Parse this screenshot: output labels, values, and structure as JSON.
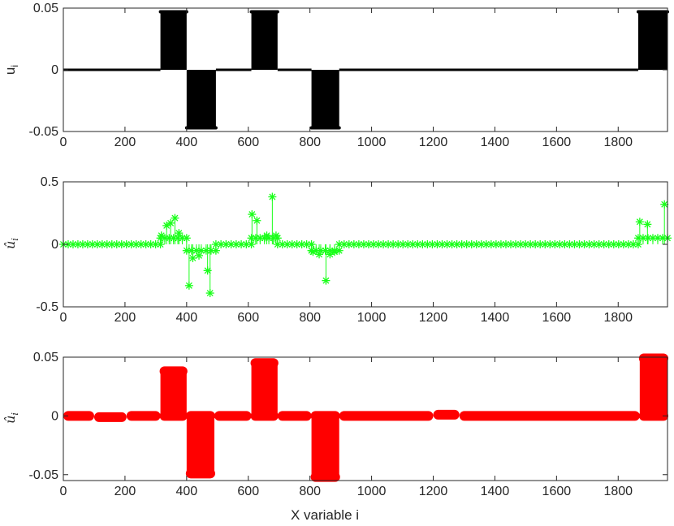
{
  "chart_data": [
    {
      "type": "line",
      "panel": "top",
      "ylabel": "u_i",
      "xlabel": "",
      "xlim": [
        0,
        1960
      ],
      "ylim": [
        -0.05,
        0.05
      ],
      "xticks": [
        "0",
        "200",
        "400",
        "600",
        "800",
        "1000",
        "1200",
        "1400",
        "1600",
        "1800"
      ],
      "yticks": [
        "-0.05",
        "0",
        "0.05"
      ],
      "style": "dense-stem",
      "color": "#000000",
      "series": [
        {
          "segments": [
            {
              "x": [
                0,
                315
              ],
              "y": 0
            },
            {
              "x": [
                315,
                400
              ],
              "y": 0.047
            },
            {
              "x": [
                400,
                495
              ],
              "y": -0.047
            },
            {
              "x": [
                495,
                610
              ],
              "y": 0
            },
            {
              "x": [
                610,
                695
              ],
              "y": 0.047
            },
            {
              "x": [
                695,
                805
              ],
              "y": 0
            },
            {
              "x": [
                805,
                895
              ],
              "y": -0.047
            },
            {
              "x": [
                895,
                1865
              ],
              "y": 0
            },
            {
              "x": [
                1865,
                1960
              ],
              "y": 0.047
            }
          ]
        }
      ]
    },
    {
      "type": "scatter",
      "panel": "middle",
      "ylabel": "û_i",
      "xlabel": "",
      "xlim": [
        0,
        1960
      ],
      "ylim": [
        -0.5,
        0.5
      ],
      "xticks": [
        "0",
        "200",
        "400",
        "600",
        "800",
        "1000",
        "1200",
        "1400",
        "1600",
        "1800"
      ],
      "yticks": [
        "-0.5",
        "0",
        "0.5"
      ],
      "style": "stem-asterisk",
      "color": "#19ff19",
      "baseline_segments": [
        {
          "x": [
            0,
            315
          ],
          "y": 0
        },
        {
          "x": [
            315,
            400
          ],
          "y": 0.05
        },
        {
          "x": [
            400,
            495
          ],
          "y": -0.05
        },
        {
          "x": [
            495,
            610
          ],
          "y": 0
        },
        {
          "x": [
            610,
            695
          ],
          "y": 0.05
        },
        {
          "x": [
            695,
            805
          ],
          "y": 0
        },
        {
          "x": [
            805,
            895
          ],
          "y": -0.05
        },
        {
          "x": [
            895,
            1865
          ],
          "y": 0
        },
        {
          "x": [
            1865,
            1960
          ],
          "y": 0.05
        }
      ],
      "spikes": [
        {
          "x": 318,
          "y": 0.07
        },
        {
          "x": 335,
          "y": 0.15
        },
        {
          "x": 348,
          "y": 0.17
        },
        {
          "x": 362,
          "y": 0.21
        },
        {
          "x": 375,
          "y": 0.09
        },
        {
          "x": 408,
          "y": -0.33
        },
        {
          "x": 420,
          "y": -0.11
        },
        {
          "x": 440,
          "y": -0.09
        },
        {
          "x": 468,
          "y": -0.21
        },
        {
          "x": 476,
          "y": -0.39
        },
        {
          "x": 612,
          "y": 0.24
        },
        {
          "x": 628,
          "y": 0.19
        },
        {
          "x": 660,
          "y": 0.07
        },
        {
          "x": 678,
          "y": 0.38
        },
        {
          "x": 690,
          "y": 0.07
        },
        {
          "x": 810,
          "y": -0.06
        },
        {
          "x": 830,
          "y": -0.08
        },
        {
          "x": 852,
          "y": -0.29
        },
        {
          "x": 865,
          "y": -0.08
        },
        {
          "x": 880,
          "y": -0.06
        },
        {
          "x": 1870,
          "y": 0.18
        },
        {
          "x": 1895,
          "y": 0.16
        },
        {
          "x": 1950,
          "y": 0.32
        }
      ]
    },
    {
      "type": "line",
      "panel": "bottom",
      "ylabel": "û_i",
      "xlabel": "X variable i",
      "xlim": [
        0,
        1960
      ],
      "ylim": [
        -0.055,
        0.05
      ],
      "xticks": [
        "0",
        "200",
        "400",
        "600",
        "800",
        "1000",
        "1200",
        "1400",
        "1600",
        "1800"
      ],
      "yticks": [
        "-0.05",
        "0",
        "0.05"
      ],
      "style": "thick-stem",
      "color": "#ff0000",
      "series": [
        {
          "segments": [
            {
              "x": [
                0,
                100
              ],
              "y": 0
            },
            {
              "x": [
                100,
                205
              ],
              "y": -0.001
            },
            {
              "x": [
                205,
                315
              ],
              "y": 0
            },
            {
              "x": [
                315,
                400
              ],
              "y": 0.038
            },
            {
              "x": [
                400,
                490
              ],
              "y": -0.049
            },
            {
              "x": [
                490,
                610
              ],
              "y": 0
            },
            {
              "x": [
                610,
                695
              ],
              "y": 0.045
            },
            {
              "x": [
                695,
                805
              ],
              "y": 0
            },
            {
              "x": [
                805,
                895
              ],
              "y": -0.052
            },
            {
              "x": [
                895,
                1200
              ],
              "y": 0
            },
            {
              "x": [
                1200,
                1285
              ],
              "y": 0.001
            },
            {
              "x": [
                1285,
                1870
              ],
              "y": 0
            },
            {
              "x": [
                1870,
                1960
              ],
              "y": 0.049
            }
          ]
        }
      ]
    }
  ]
}
